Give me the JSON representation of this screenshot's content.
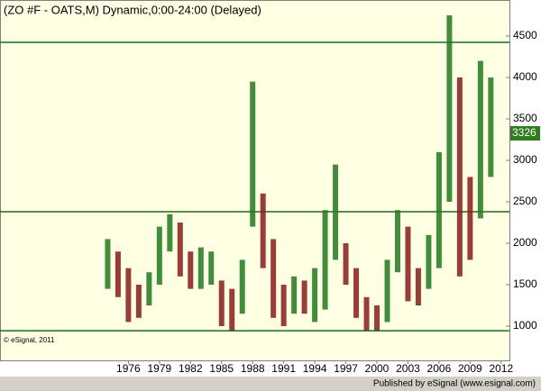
{
  "chart_data": {
    "type": "range-bar",
    "title": "(ZO #F - OATS,M) Dynamic,0:00-24:00 (Delayed)",
    "copyright": "© eSignal, 2011",
    "footer": "Published by eSignal (www.esignal.com)",
    "last_price": 3326,
    "last_price_color": "#2e7d1e",
    "x": [
      1974,
      1975,
      1976,
      1977,
      1978,
      1979,
      1980,
      1981,
      1982,
      1983,
      1984,
      1985,
      1986,
      1987,
      1988,
      1989,
      1990,
      1991,
      1992,
      1993,
      1994,
      1995,
      1996,
      1997,
      1998,
      1999,
      2000,
      2001,
      2002,
      2003,
      2004,
      2005,
      2006,
      2007,
      2008,
      2009,
      2010,
      2011
    ],
    "series": [
      {
        "name": "High",
        "color": "#1f7a1f",
        "values": [
          2050,
          1900,
          1700,
          1500,
          1650,
          2200,
          2350,
          2250,
          1900,
          1950,
          1900,
          1550,
          1450,
          1800,
          3950,
          2600,
          2050,
          1500,
          1600,
          1550,
          1700,
          2400,
          2950,
          2000,
          1700,
          1350,
          1250,
          1800,
          2400,
          2200,
          1700,
          2100,
          3100,
          4750,
          4000,
          2800,
          4200,
          4000
        ]
      },
      {
        "name": "Low",
        "color": "#8b1a1a",
        "values": [
          1450,
          1350,
          1050,
          1100,
          1250,
          1500,
          1900,
          1600,
          1450,
          1450,
          1500,
          1000,
          950,
          1150,
          2200,
          1700,
          1100,
          1000,
          1150,
          1150,
          1050,
          1200,
          1800,
          1500,
          1100,
          950,
          950,
          1050,
          1650,
          1300,
          1250,
          1450,
          1700,
          2500,
          1600,
          1800,
          2300,
          2800
        ]
      }
    ],
    "levels": [
      4424,
      2380,
      945
    ],
    "level_color": "#1e6b1e",
    "xlim": [
      1963.6,
      2012.8
    ],
    "xticks": [
      1976,
      1979,
      1982,
      1985,
      1988,
      1991,
      1994,
      1997,
      2000,
      2003,
      2006,
      2009,
      2012
    ],
    "ylim": [
      587,
      4935
    ],
    "yticks": [
      1000,
      1500,
      2000,
      2500,
      3000,
      3500,
      4000,
      4500
    ]
  }
}
